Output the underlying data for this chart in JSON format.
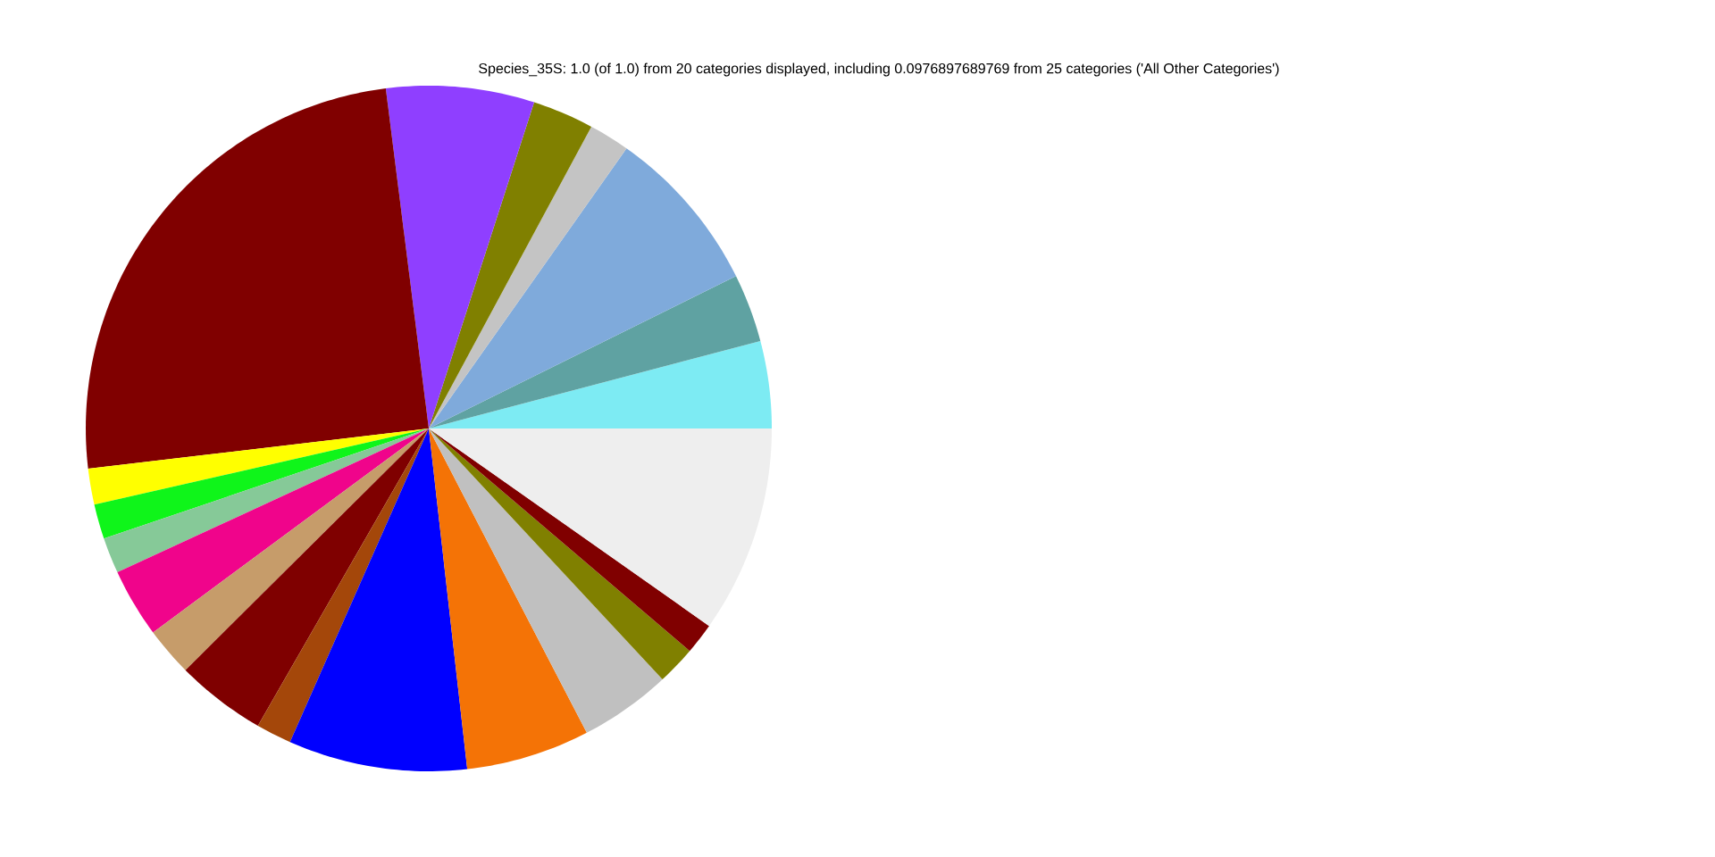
{
  "chart_data": {
    "type": "pie",
    "title": "Species_35S: 1.0 (of 1.0) from 20 categories displayed, including 0.0976897689769 from 25 categories ('All Other Categories')",
    "categories": [
      null,
      null,
      null,
      null,
      null,
      null,
      null,
      null,
      null,
      null,
      null,
      null,
      null,
      null,
      null,
      null,
      null,
      null,
      null,
      null
    ],
    "values": [
      4.11,
      3.22,
      7.89,
      1.92,
      2.89,
      6.97,
      24.87,
      1.69,
      1.64,
      1.69,
      3.25,
      2.31,
      4.25,
      1.67,
      8.42,
      5.83,
      4.31,
      1.83,
      1.47,
      9.77
    ],
    "colors": [
      "#7debf3",
      "#5fa2a2",
      "#7faadb",
      "#c4c4c4",
      "#808000",
      "#8f3fff",
      "#800000",
      "#ffff00",
      "#0ff51a",
      "#86c998",
      "#f0048b",
      "#c69c6a",
      "#7f0000",
      "#a4470a",
      "#0000ff",
      "#f47306",
      "#c0c0c0",
      "#808000",
      "#800000",
      "#eeeeee"
    ]
  }
}
